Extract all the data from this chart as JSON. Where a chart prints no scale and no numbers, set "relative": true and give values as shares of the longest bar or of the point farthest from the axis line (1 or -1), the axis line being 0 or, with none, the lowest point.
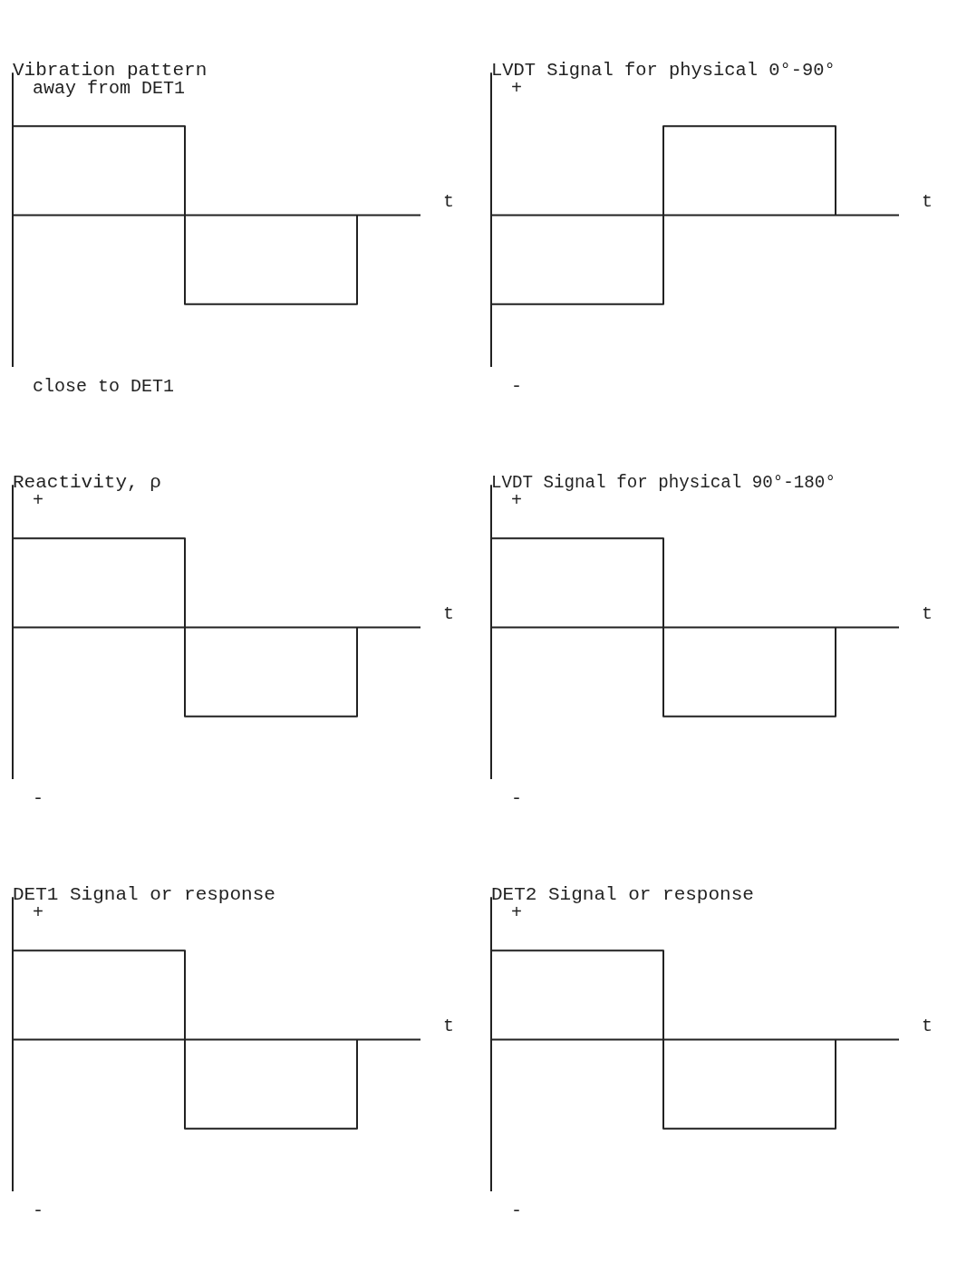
{
  "chart_data": [
    {
      "type": "step",
      "title": "Vibration pattern",
      "xlabel": "t",
      "annotations": [
        "away from DET1",
        "close to DET1"
      ],
      "relative": true,
      "categories": [
        null,
        null,
        null
      ],
      "series": [
        {
          "color": "#222222",
          "values": [
            1,
            -1,
            0
          ]
        }
      ]
    },
    {
      "type": "step",
      "title": "LVDT Signal for physical 0°-90°",
      "xlabel": "t",
      "annotations": [
        "+",
        "-"
      ],
      "relative": true,
      "categories": [
        null,
        null,
        null
      ],
      "series": [
        {
          "color": "#222222",
          "values": [
            -1,
            1,
            0
          ]
        }
      ]
    },
    {
      "type": "step",
      "title": "Reactivity, ρ",
      "xlabel": "t",
      "annotations": [
        "+",
        "-"
      ],
      "relative": true,
      "categories": [
        null,
        null,
        null
      ],
      "series": [
        {
          "color": "#222222",
          "values": [
            1,
            -1,
            0
          ]
        }
      ]
    },
    {
      "type": "step",
      "title": "LVDT Signal for physical 90°-180°",
      "xlabel": "t",
      "annotations": [
        "+",
        "-"
      ],
      "relative": true,
      "categories": [
        null,
        null,
        null
      ],
      "series": [
        {
          "color": "#222222",
          "values": [
            1,
            -1,
            0
          ]
        }
      ]
    },
    {
      "type": "step",
      "title": "DET1 Signal or response",
      "xlabel": "t",
      "annotations": [
        "+",
        "-"
      ],
      "relative": true,
      "categories": [
        null,
        null,
        null
      ],
      "series": [
        {
          "color": "#222222",
          "values": [
            1,
            -1,
            0
          ]
        }
      ]
    },
    {
      "type": "step",
      "title": "DET2 Signal or response",
      "xlabel": "t",
      "annotations": [
        "+",
        "-"
      ],
      "relative": true,
      "categories": [
        null,
        null,
        null
      ],
      "series": [
        {
          "color": "#222222",
          "values": [
            1,
            -1,
            0
          ]
        }
      ]
    }
  ]
}
